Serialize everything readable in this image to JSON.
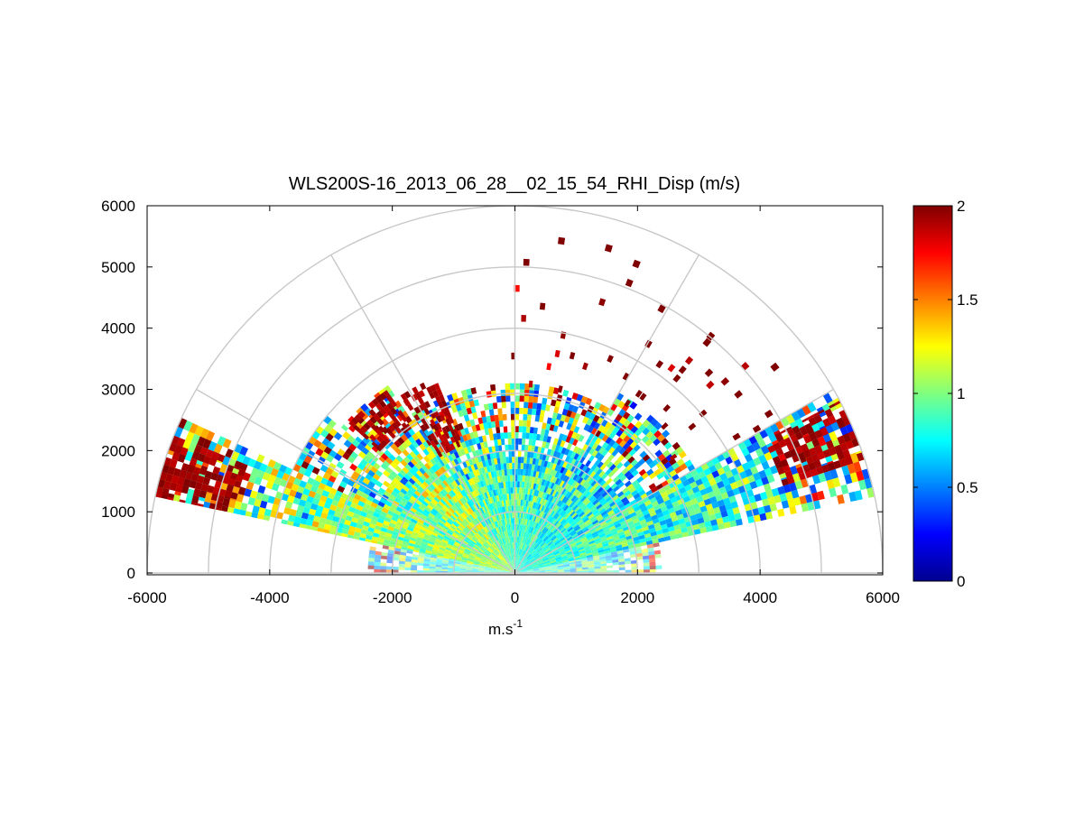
{
  "chart_data": {
    "type": "heatmap",
    "subtype": "polar-rhi-scan",
    "title": "WLS200S-16_2013_06_28__02_15_54_RHI_Disp (m/s)",
    "xlabel": "m.s",
    "xlabel_superscript": "-1",
    "ylabel": "",
    "xlim": [
      -6000,
      6000
    ],
    "ylim": [
      0,
      6000
    ],
    "x_ticks": [
      "-6000",
      "-4000",
      "-2000",
      "0",
      "2000",
      "4000",
      "6000"
    ],
    "y_ticks": [
      "0",
      "1000",
      "2000",
      "3000",
      "4000",
      "5000",
      "6000"
    ],
    "polar_grid": {
      "rings": [
        1000,
        2000,
        3000,
        4000,
        5000,
        6000
      ],
      "spokes_deg": [
        0,
        30,
        60,
        90,
        120,
        150,
        180
      ],
      "grid": true
    },
    "colorbar": {
      "colormap": "jet",
      "range": [
        0,
        2
      ],
      "ticks": [
        "0",
        "0.5",
        "1",
        "1.5",
        "2"
      ],
      "placement": "right"
    },
    "sectors": [
      {
        "from_deg": 168,
        "to_deg": 180,
        "max_range": 2400,
        "mean_value": 0.85,
        "note": "faint low-elevation fill"
      },
      {
        "from_deg": 155,
        "to_deg": 168,
        "max_range": 6000,
        "mean_value": 1.05
      },
      {
        "from_deg": 140,
        "to_deg": 155,
        "max_range": 4000,
        "mean_value": 1.0
      },
      {
        "from_deg": 124,
        "to_deg": 140,
        "max_range": 3700,
        "mean_value": 1.1
      },
      {
        "from_deg": 90,
        "to_deg": 124,
        "max_range": 3050,
        "mean_value": 0.9
      },
      {
        "from_deg": 60,
        "to_deg": 90,
        "max_range": 3050,
        "mean_value": 0.85
      },
      {
        "from_deg": 30,
        "to_deg": 60,
        "max_range": 3400,
        "mean_value": 0.8
      },
      {
        "from_deg": 12,
        "to_deg": 30,
        "max_range": 6000,
        "mean_value": 0.85
      },
      {
        "from_deg": 0,
        "to_deg": 12,
        "max_range": 2400,
        "mean_value": 0.8,
        "note": "faint low-elevation fill"
      }
    ],
    "high_value_bands": [
      {
        "from_deg": 125,
        "to_deg": 138,
        "from_range": 2950,
        "to_range": 3650,
        "value": 2.0
      },
      {
        "from_deg": 112,
        "to_deg": 123,
        "from_range": 2250,
        "to_range": 3400,
        "value": 2.0
      },
      {
        "from_deg": 158,
        "to_deg": 168,
        "from_range": 4700,
        "to_range": 6000,
        "value": 2.0
      },
      {
        "from_deg": 18,
        "to_deg": 28,
        "from_range": 4600,
        "to_range": 6000,
        "value": 2.0
      }
    ]
  }
}
